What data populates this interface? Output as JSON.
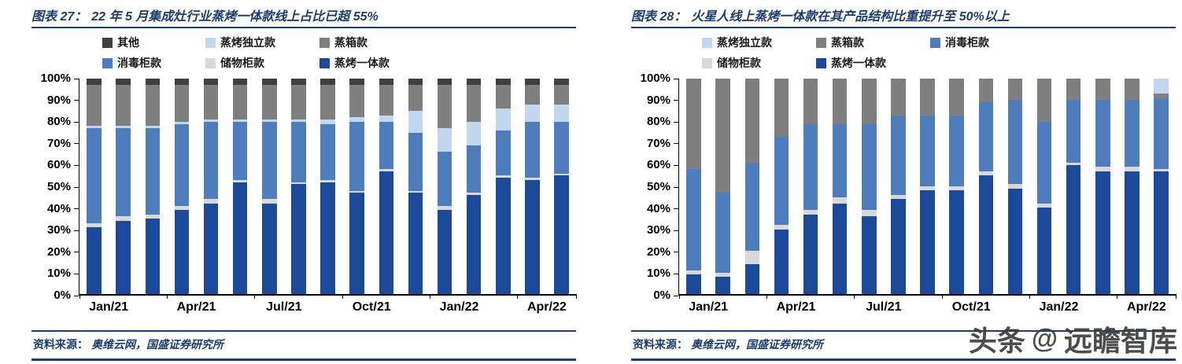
{
  "panels": [
    {
      "figure_label": "图表 27：",
      "title": "22 年 5 月集成灶行业蒸烤一体款线上占比已超 55%",
      "source_label": "资料来源：",
      "source": "奥维云网，国盛证券研究所",
      "chart_data": {
        "type": "bar",
        "stacked": true,
        "unit": "%",
        "ylim": [
          0,
          100
        ],
        "ytick_step": 10,
        "categories": [
          "Jan/21",
          "Feb/21",
          "Mar/21",
          "Apr/21",
          "May/21",
          "Jun/21",
          "Jul/21",
          "Aug/21",
          "Sep/21",
          "Oct/21",
          "Nov/21",
          "Dec/21",
          "Jan/22",
          "Feb/22",
          "Mar/22",
          "Apr/22",
          "May/22"
        ],
        "x_tick_labels": [
          "Jan/21",
          "Apr/21",
          "Jul/21",
          "Oct/21",
          "Jan/22",
          "Apr/22"
        ],
        "x_tick_indices": [
          0,
          3,
          6,
          9,
          12,
          15
        ],
        "legend_order": [
          "其他",
          "蒸烤独立款",
          "蒸箱款",
          "消毒柜款",
          "储物柜款",
          "蒸烤一体款"
        ],
        "series": [
          {
            "name": "蒸烤一体款",
            "color": "#1b4a9b",
            "values": [
              31,
              34,
              35,
              39,
              42,
              52,
              42,
              51,
              52,
              47,
              57,
              47,
              39,
              46,
              54,
              53,
              55
            ]
          },
          {
            "name": "储物柜款",
            "color": "#d8d8d8",
            "values": [
              2,
              2,
              2,
              2,
              2,
              1,
              2,
              1,
              1,
              1,
              1,
              1,
              2,
              1,
              1,
              1,
              1
            ]
          },
          {
            "name": "消毒柜款",
            "color": "#4e7dbe",
            "values": [
              44,
              41,
              40,
              38,
              36,
              27,
              36,
              28,
              26,
              32,
              22,
              27,
              25,
              22,
              21,
              26,
              24
            ]
          },
          {
            "name": "蒸烤独立款",
            "color": "#c3d6ef",
            "values": [
              1,
              1,
              1,
              1,
              1,
              1,
              1,
              1,
              2,
              2,
              3,
              10,
              11,
              11,
              10,
              8,
              8
            ]
          },
          {
            "name": "蒸箱款",
            "color": "#7f7f7f",
            "values": [
              19,
              19,
              19,
              17,
              16,
              16,
              16,
              16,
              16,
              15,
              14,
              12,
              20,
              17,
              11,
              9,
              9
            ]
          },
          {
            "name": "其他",
            "color": "#404040",
            "values": [
              3,
              3,
              3,
              3,
              3,
              3,
              3,
              3,
              3,
              3,
              3,
              3,
              3,
              3,
              3,
              3,
              3
            ]
          }
        ]
      }
    },
    {
      "figure_label": "图表 28：",
      "title": "火星人线上蒸烤一体款在其产品结构比重提升至 50%以上",
      "source_label": "资料来源：",
      "source": "奥维云网，国盛证券研究所",
      "chart_data": {
        "type": "bar",
        "stacked": true,
        "unit": "%",
        "ylim": [
          0,
          100
        ],
        "ytick_step": 10,
        "categories": [
          "Jan/21",
          "Feb/21",
          "Mar/21",
          "Apr/21",
          "May/21",
          "Jun/21",
          "Jul/21",
          "Aug/21",
          "Sep/21",
          "Oct/21",
          "Nov/21",
          "Dec/21",
          "Jan/22",
          "Feb/22",
          "Mar/22",
          "Apr/22",
          "May/22"
        ],
        "x_tick_labels": [
          "Jan/21",
          "Apr/21",
          "Jul/21",
          "Oct/21",
          "Jan/22",
          "Apr/22"
        ],
        "x_tick_indices": [
          0,
          3,
          6,
          9,
          12,
          15
        ],
        "legend_order": [
          "蒸烤独立款",
          "蒸箱款",
          "消毒柜款",
          "储物柜款",
          "蒸烤一体款"
        ],
        "series": [
          {
            "name": "蒸烤一体款",
            "color": "#1b4a9b",
            "values": [
              9,
              8,
              14,
              30,
              37,
              42,
              36,
              44,
              48,
              48,
              55,
              49,
              40,
              60,
              57,
              57,
              57
            ]
          },
          {
            "name": "储物柜款",
            "color": "#d8d8d8",
            "values": [
              2,
              2,
              6,
              2,
              2,
              3,
              3,
              2,
              2,
              2,
              2,
              2,
              2,
              1,
              2,
              2,
              1
            ]
          },
          {
            "name": "消毒柜款",
            "color": "#4e7dbe",
            "values": [
              47,
              37,
              41,
              41,
              40,
              34,
              40,
              37,
              33,
              33,
              32,
              39,
              38,
              29,
              31,
              31,
              33
            ]
          },
          {
            "name": "蒸箱款",
            "color": "#7f7f7f",
            "values": [
              42,
              53,
              39,
              27,
              21,
              21,
              21,
              17,
              17,
              17,
              11,
              10,
              20,
              10,
              10,
              10,
              2
            ]
          },
          {
            "name": "蒸烤独立款",
            "color": "#c3d6ef",
            "values": [
              0,
              0,
              0,
              0,
              0,
              0,
              0,
              0,
              0,
              0,
              0,
              0,
              0,
              0,
              0,
              0,
              7
            ]
          }
        ]
      }
    }
  ],
  "watermark": {
    "prefix": "头条",
    "logo": "@",
    "name": "远瞻智库"
  }
}
